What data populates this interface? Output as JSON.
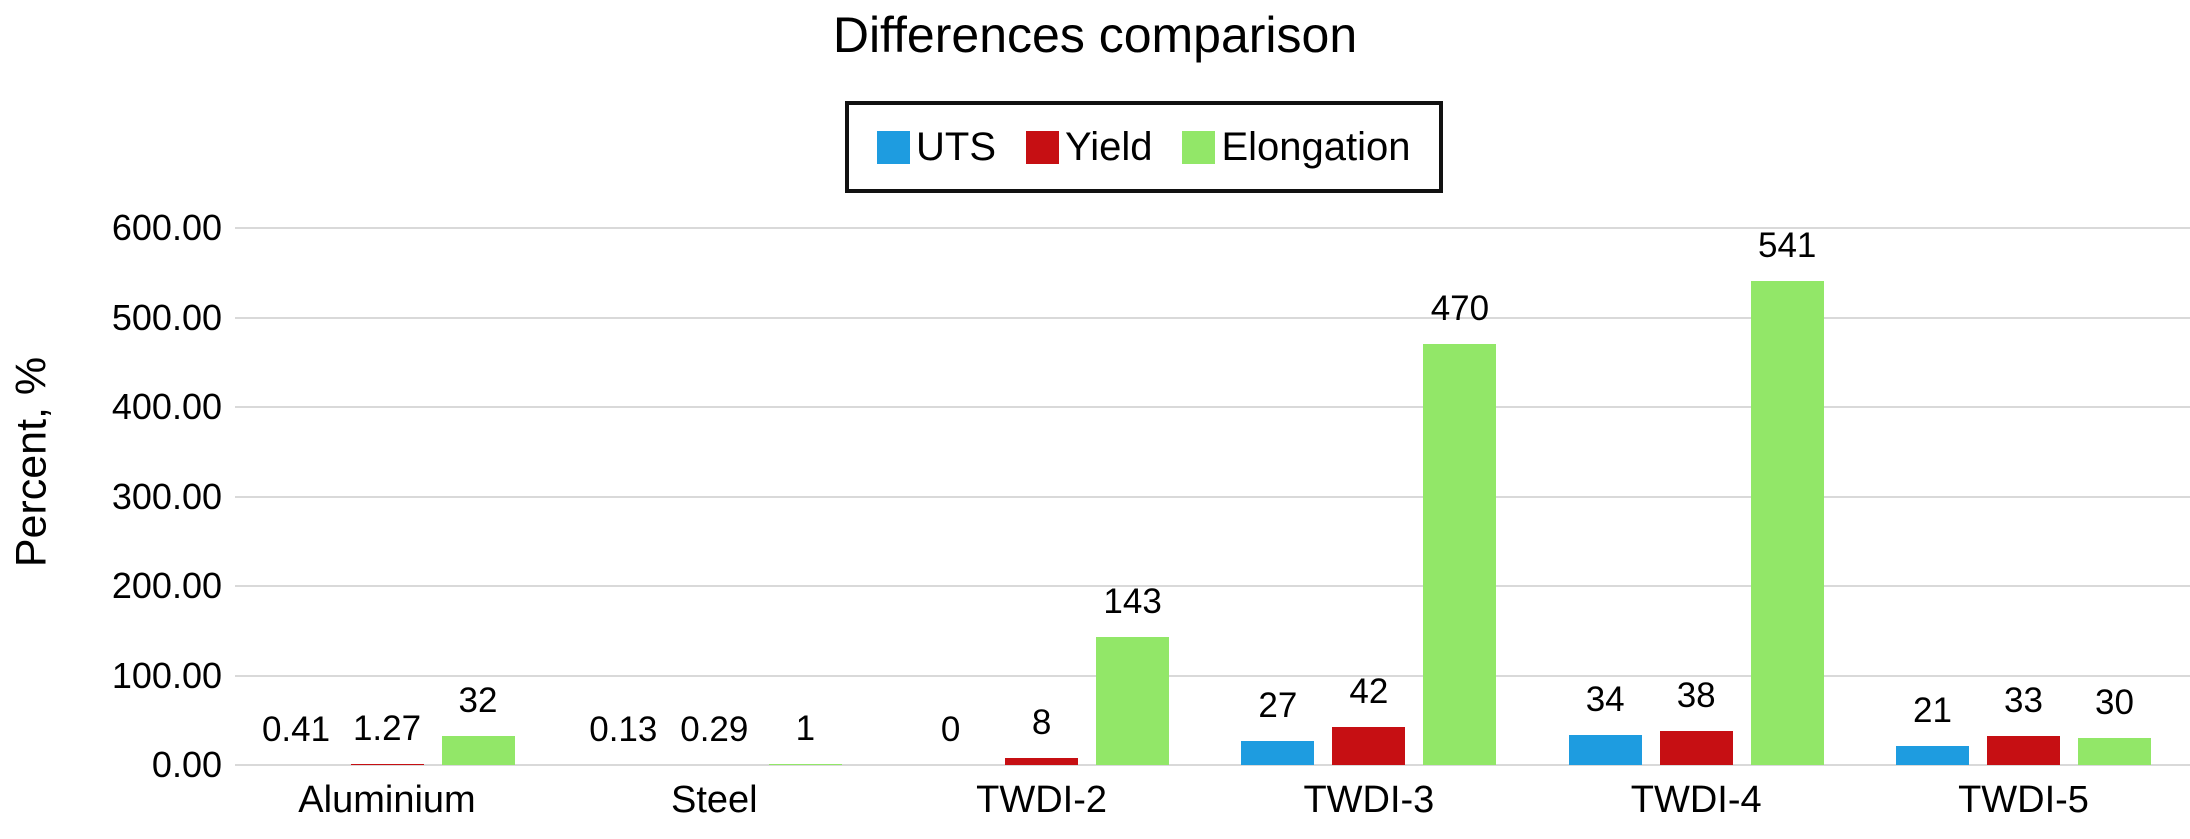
{
  "chart": {
    "title": "Differences comparison"
  },
  "chart_data": {
    "type": "bar",
    "title": "Differences comparison",
    "xlabel": "",
    "ylabel": "Percent, %",
    "ylim": [
      0,
      600
    ],
    "ytick_labels": [
      "0.00",
      "100.00",
      "200.00",
      "300.00",
      "400.00",
      "500.00",
      "600.00"
    ],
    "grid": true,
    "legend_position": "top",
    "categories": [
      "Aluminium",
      "Steel",
      "TWDI-2",
      "TWDI-3",
      "TWDI-4",
      "TWDI-5"
    ],
    "series": [
      {
        "name": "UTS",
        "color": "#1e9ce0",
        "values": [
          0.41,
          0.13,
          0,
          27,
          34,
          21
        ],
        "labels": [
          "0.41",
          "0.13",
          "0",
          "27",
          "34",
          "21"
        ]
      },
      {
        "name": "Yield",
        "color": "#c60f13",
        "values": [
          1.27,
          0.29,
          8,
          42,
          38,
          33
        ],
        "labels": [
          "1.27",
          "0.29",
          "8",
          "42",
          "38",
          "33"
        ]
      },
      {
        "name": "Elongation",
        "color": "#92e768",
        "values": [
          32,
          1,
          143,
          470,
          541,
          30
        ],
        "labels": [
          "32",
          "1",
          "143",
          "470",
          "541",
          "30"
        ]
      }
    ]
  },
  "colors": {
    "gridline": "#d9d9d9",
    "text": "#000000",
    "legend_border": "#111111"
  }
}
